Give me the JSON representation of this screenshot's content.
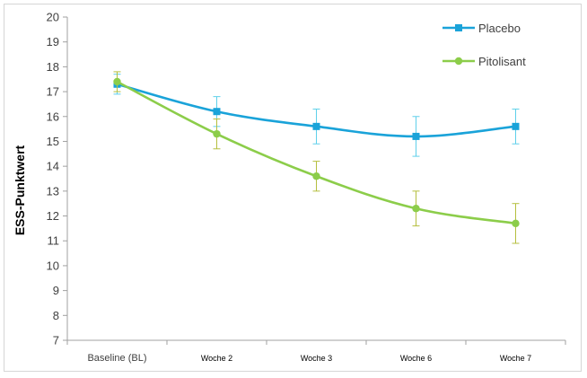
{
  "chart_data": {
    "type": "line",
    "title": "",
    "xlabel": "",
    "ylabel": "ESS-Punktwert",
    "categories": [
      "Baseline (BL)",
      "Woche 2",
      "Woche 3",
      "Woche 6",
      "Woche 7"
    ],
    "ylim": [
      7,
      20
    ],
    "yticks": [
      7,
      8,
      9,
      10,
      11,
      12,
      13,
      14,
      15,
      16,
      17,
      18,
      19,
      20
    ],
    "grid": false,
    "legend_position": "top-right",
    "series": [
      {
        "name": "Placebo",
        "color": "#1aa3d9",
        "errorbar_color": "#5fd0ea",
        "marker": "square",
        "values": [
          17.3,
          16.2,
          15.6,
          15.2,
          15.6
        ],
        "error_low": [
          16.9,
          15.6,
          14.9,
          14.4,
          14.9
        ],
        "error_high": [
          17.7,
          16.8,
          16.3,
          16.0,
          16.3
        ]
      },
      {
        "name": "Pitolisant",
        "color": "#8ccd4a",
        "errorbar_color": "#b5bf3e",
        "marker": "circle",
        "values": [
          17.4,
          15.3,
          13.6,
          12.3,
          11.7
        ],
        "error_low": [
          17.0,
          14.7,
          13.0,
          11.6,
          10.9
        ],
        "error_high": [
          17.8,
          15.9,
          14.2,
          13.0,
          12.5
        ]
      }
    ]
  }
}
